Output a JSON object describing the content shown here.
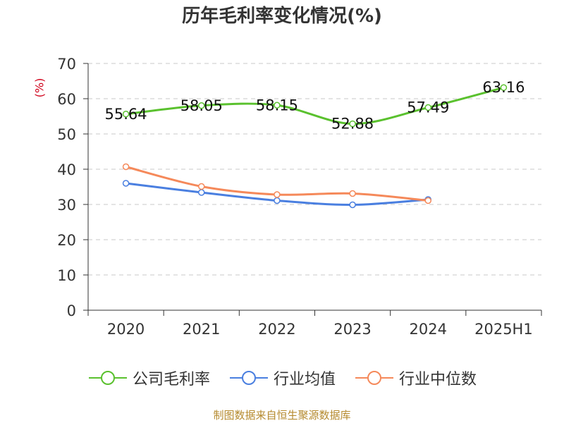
{
  "chart_data": {
    "type": "line",
    "title": "历年毛利率变化情况(%)",
    "ylabel": "(%)",
    "categories": [
      "2020",
      "2021",
      "2022",
      "2023",
      "2024",
      "2025H1"
    ],
    "yticks": [
      "0",
      "10",
      "20",
      "30",
      "40",
      "50",
      "60",
      "70"
    ],
    "ylim": [
      0,
      70
    ],
    "grid": true,
    "legend_position": "bottom",
    "series": [
      {
        "name": "公司毛利率",
        "color": "#5ac12e",
        "values": [
          55.64,
          58.05,
          58.15,
          52.88,
          57.49,
          63.16
        ],
        "labels": [
          "55.64",
          "58.05",
          "58.15",
          "52.88",
          "57.49",
          "63.16"
        ]
      },
      {
        "name": "行业均值",
        "color": "#4a7fe0",
        "values": [
          36.0,
          33.4,
          31.1,
          29.9,
          31.4,
          null
        ]
      },
      {
        "name": "行业中位数",
        "color": "#f5895a",
        "values": [
          40.7,
          35.1,
          32.8,
          33.1,
          31.1,
          null
        ]
      }
    ]
  },
  "source": "制图数据来自恒生聚源数据库"
}
